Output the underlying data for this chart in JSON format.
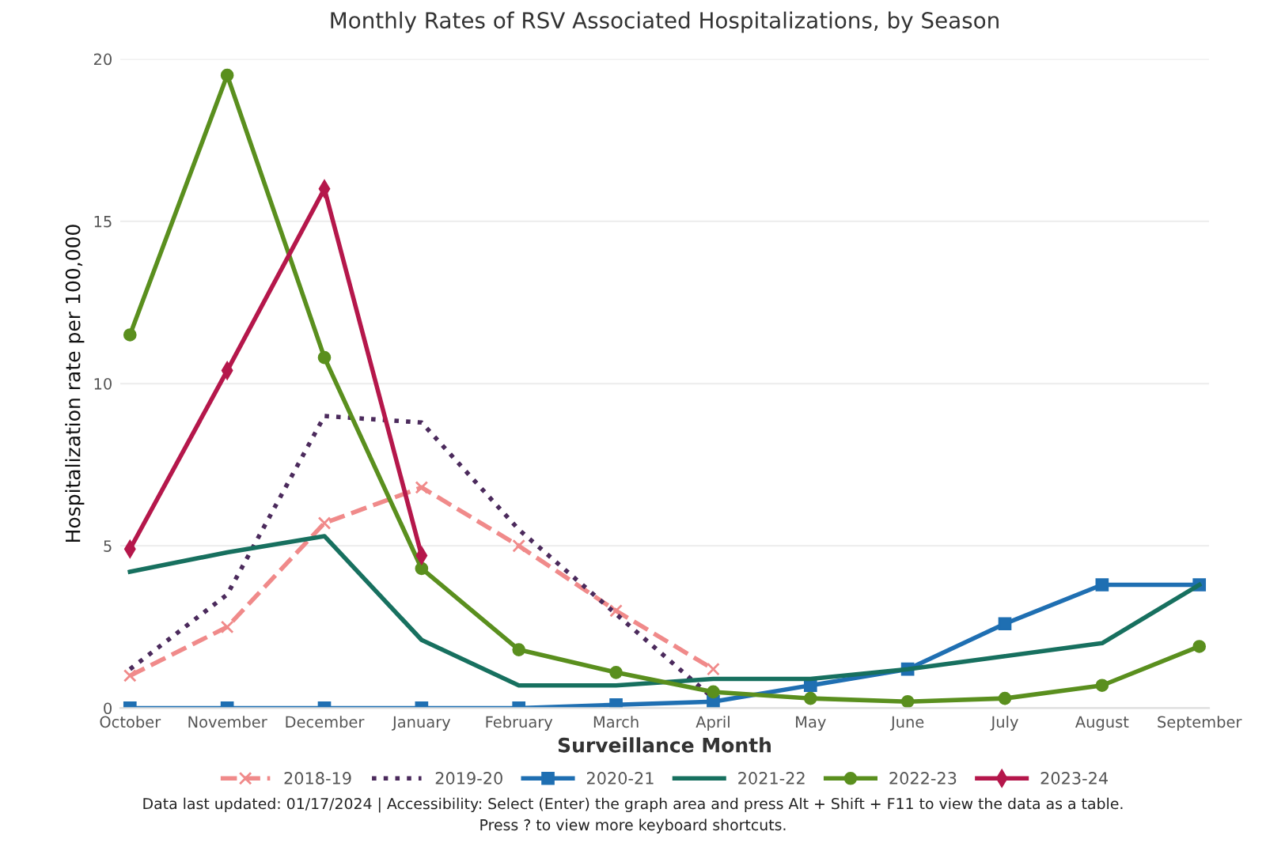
{
  "chart_data": {
    "type": "line",
    "title": "Monthly Rates of RSV Associated Hospitalizations, by Season",
    "xlabel": "Surveillance Month",
    "ylabel": "Hospitalization rate per 100,000",
    "categories": [
      "October",
      "November",
      "December",
      "January",
      "February",
      "March",
      "April",
      "May",
      "June",
      "July",
      "August",
      "September"
    ],
    "series": [
      {
        "name": "2018-19",
        "color": "#f08a8a",
        "marker": "cross",
        "line_style": "dashed",
        "values": [
          1.0,
          2.5,
          5.7,
          6.8,
          5.0,
          3.0,
          1.2,
          null,
          null,
          null,
          null,
          null
        ]
      },
      {
        "name": "2019-20",
        "color": "#4b2a5c",
        "marker": "none",
        "line_style": "dotted",
        "values": [
          1.2,
          3.5,
          9.0,
          8.8,
          5.5,
          2.9,
          0.3,
          null,
          null,
          null,
          null,
          null
        ]
      },
      {
        "name": "2020-21",
        "color": "#1f6fb2",
        "marker": "square",
        "line_style": "solid",
        "values": [
          0,
          0,
          0,
          0,
          0,
          0.1,
          0.2,
          0.7,
          1.2,
          2.6,
          3.8,
          3.8
        ]
      },
      {
        "name": "2021-22",
        "color": "#17705f",
        "marker": "none",
        "line_style": "solid",
        "values": [
          4.2,
          4.8,
          5.3,
          2.1,
          0.7,
          0.7,
          0.9,
          0.9,
          1.2,
          1.6,
          2.0,
          3.8
        ]
      },
      {
        "name": "2022-23",
        "color": "#5a8f1e",
        "marker": "circle",
        "line_style": "solid",
        "values": [
          11.5,
          19.5,
          10.8,
          4.3,
          1.8,
          1.1,
          0.5,
          0.3,
          0.2,
          0.3,
          0.7,
          1.9
        ]
      },
      {
        "name": "2023-24",
        "color": "#b5174b",
        "marker": "diamond",
        "line_style": "solid",
        "values": [
          4.9,
          10.4,
          16.0,
          4.7,
          null,
          null,
          null,
          null,
          null,
          null,
          null,
          null
        ]
      }
    ],
    "ylim": [
      0,
      20
    ],
    "yticks": [
      0,
      5,
      10,
      15,
      20
    ],
    "grid": "y",
    "legend": "bottom",
    "annotations": [
      "Data last updated: 01/17/2024 | Accessibility: Select (Enter) the graph area and press Alt + Shift + F11 to view the data as a table.",
      "Press ? to view more keyboard shortcuts."
    ]
  }
}
